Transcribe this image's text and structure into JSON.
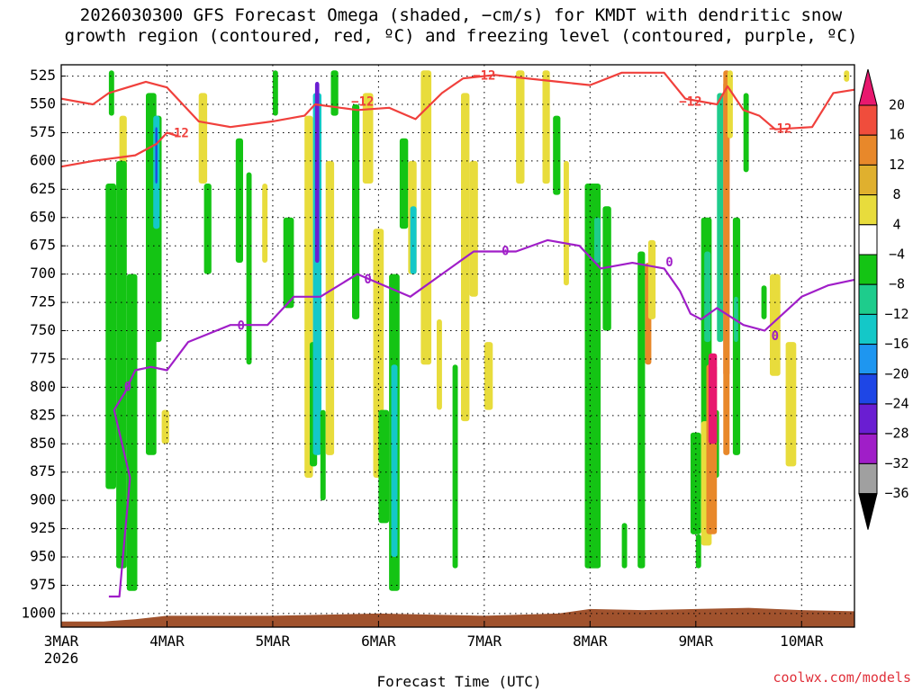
{
  "title": {
    "line1": "2026030300 GFS Forecast Omega (shaded, −cm/s) for KMDT with dendritic snow",
    "line2": "growth region (contoured, red, ºC) and freezing level (contoured, purple, ºC)"
  },
  "credit": "coolwx.com/models",
  "chart_data": {
    "type": "heatmap",
    "xlabel": "Forecast Time (UTC)",
    "x_ticks": [
      "3MAR",
      "4MAR",
      "5MAR",
      "6MAR",
      "7MAR",
      "8MAR",
      "9MAR",
      "10MAR"
    ],
    "x_tick_sub": "2026",
    "x_range_days": [
      0,
      7.5
    ],
    "y_ticks": [
      525,
      550,
      575,
      600,
      625,
      650,
      675,
      700,
      725,
      750,
      775,
      800,
      825,
      850,
      875,
      900,
      925,
      950,
      975,
      1000
    ],
    "y_range_hpa": [
      515,
      1012
    ],
    "grid": true,
    "colorbar": {
      "labels": [
        "20",
        "16",
        "12",
        "8",
        "4",
        "−4",
        "−8",
        "−12",
        "−16",
        "−20",
        "−24",
        "−28",
        "−32",
        "−36"
      ],
      "colors": [
        "#e8186e",
        "#f04d3c",
        "#e8882a",
        "#e0b02e",
        "#e8dc3c",
        "#ffffff",
        "#14c414",
        "#1ecc8c",
        "#14c8c8",
        "#1e96f0",
        "#1e46e6",
        "#6a1ed2",
        "#a01ec8",
        "#a0a0a0",
        "#000000"
      ]
    },
    "contours": [
      {
        "label": "−12",
        "color": "#f0403c",
        "upper": [
          [
            0,
            545
          ],
          [
            0.3,
            550
          ],
          [
            0.45,
            540
          ],
          [
            0.8,
            530
          ],
          [
            1.0,
            535
          ],
          [
            1.3,
            565
          ],
          [
            1.6,
            570
          ],
          [
            2.0,
            565
          ],
          [
            2.3,
            560
          ],
          [
            2.4,
            550
          ],
          [
            2.8,
            555
          ],
          [
            3.1,
            553
          ],
          [
            3.35,
            563
          ],
          [
            3.6,
            540
          ],
          [
            3.8,
            527
          ],
          [
            4.1,
            524
          ],
          [
            4.4,
            527
          ],
          [
            4.7,
            530
          ],
          [
            5.0,
            533
          ],
          [
            5.3,
            522
          ],
          [
            5.7,
            522
          ],
          [
            5.9,
            545
          ],
          [
            6.2,
            550
          ],
          [
            6.3,
            534
          ],
          [
            6.45,
            555
          ],
          [
            6.6,
            560
          ],
          [
            6.75,
            572
          ],
          [
            7.1,
            570
          ],
          [
            7.3,
            540
          ],
          [
            7.5,
            537
          ]
        ],
        "lower": [
          [
            0,
            605
          ],
          [
            0.3,
            600
          ],
          [
            0.7,
            595
          ],
          [
            0.9,
            585
          ],
          [
            1.0,
            575
          ],
          [
            1.1,
            578
          ]
        ]
      },
      {
        "label": "0",
        "color": "#a01ec8",
        "points": [
          [
            0.45,
            985
          ],
          [
            0.55,
            985
          ],
          [
            0.65,
            880
          ],
          [
            0.6,
            860
          ],
          [
            0.5,
            820
          ],
          [
            0.6,
            805
          ],
          [
            0.7,
            785
          ],
          [
            0.85,
            782
          ],
          [
            1.0,
            785
          ],
          [
            1.2,
            760
          ],
          [
            1.6,
            745
          ],
          [
            1.95,
            745
          ],
          [
            2.2,
            720
          ],
          [
            2.45,
            720
          ],
          [
            2.8,
            700
          ],
          [
            3.05,
            710
          ],
          [
            3.3,
            720
          ],
          [
            3.6,
            700
          ],
          [
            3.9,
            680
          ],
          [
            4.3,
            680
          ],
          [
            4.6,
            670
          ],
          [
            4.9,
            675
          ],
          [
            5.1,
            695
          ],
          [
            5.4,
            690
          ],
          [
            5.7,
            695
          ],
          [
            5.85,
            715
          ],
          [
            5.95,
            735
          ],
          [
            6.05,
            740
          ],
          [
            6.2,
            730
          ],
          [
            6.45,
            745
          ],
          [
            6.65,
            750
          ],
          [
            7.0,
            720
          ],
          [
            7.25,
            710
          ],
          [
            7.5,
            705
          ]
        ]
      }
    ]
  },
  "colorbar_label_name": "omega-colorbar"
}
